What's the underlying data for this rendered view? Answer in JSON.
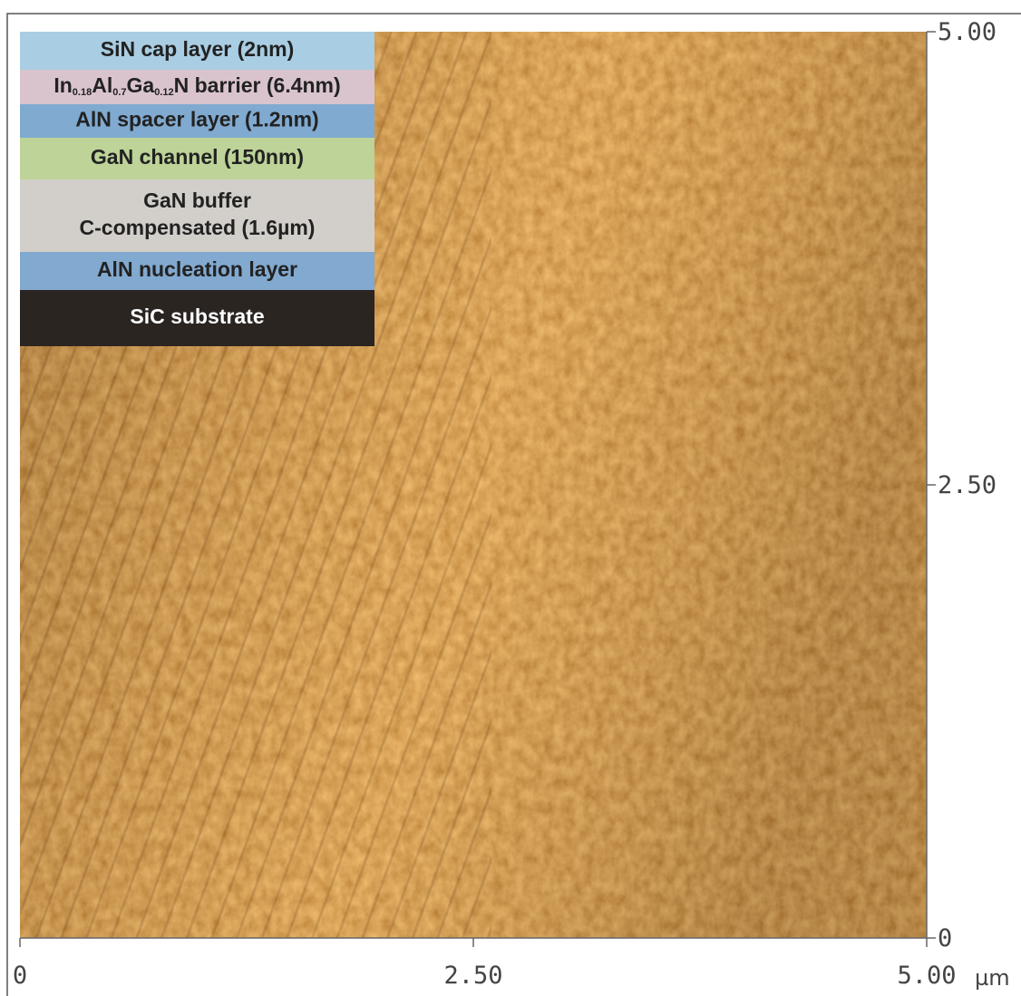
{
  "image": {
    "type": "afm-scan",
    "xlim": [
      0,
      5
    ],
    "ylim": [
      0,
      5
    ],
    "x_ticks": [
      {
        "value": 0,
        "label": "0"
      },
      {
        "value": 2.5,
        "label": "2.50"
      },
      {
        "value": 5,
        "label": "5.00"
      }
    ],
    "y_ticks": [
      {
        "value": 0,
        "label": "0"
      },
      {
        "value": 2.5,
        "label": "2.50"
      },
      {
        "value": 5,
        "label": "5.00"
      }
    ],
    "unit": "µm"
  },
  "layers": [
    {
      "label": "SiN cap layer (2nm)",
      "color": "#a9cde2"
    },
    {
      "label_parts": [
        {
          "text": "In"
        },
        {
          "sub": "0.18"
        },
        {
          "text": "Al"
        },
        {
          "sub": "0.7"
        },
        {
          "text": "Ga"
        },
        {
          "sub": "0.12"
        },
        {
          "text": "N barrier (6.4nm)"
        }
      ],
      "color": "#d9c4cd"
    },
    {
      "label": "AlN spacer layer (1.2nm)",
      "color": "#80aad0"
    },
    {
      "label": "GaN channel (150nm)",
      "color": "#bdd398"
    },
    {
      "label_lines": [
        "GaN buffer",
        "C-compensated (1.6µm)"
      ],
      "color": "#d2cfca"
    },
    {
      "label": "AlN nucleation layer",
      "color": "#82a9cf"
    },
    {
      "label": "SiC substrate",
      "color": "#2b2522",
      "text_color": "#ffffff"
    }
  ]
}
